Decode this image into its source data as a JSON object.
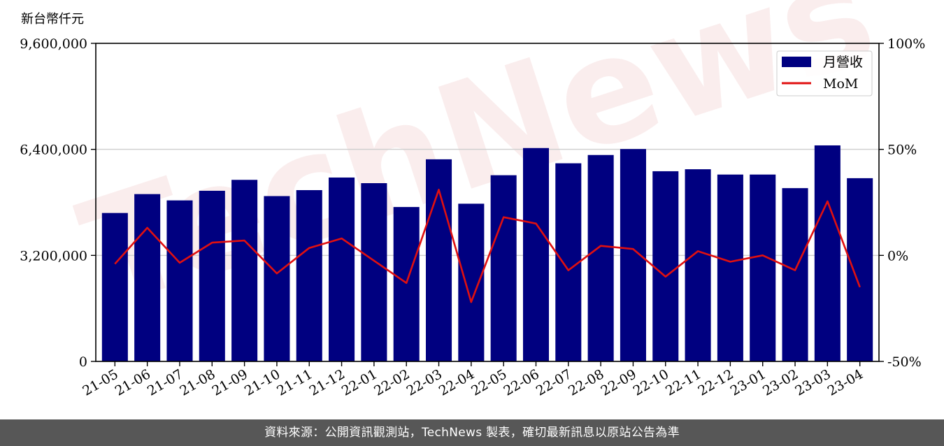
{
  "footer": {
    "source_text": "資料來源：公開資訊觀測站，TechNews 製表，確切最新訊息以原站公告為準"
  },
  "watermark": {
    "text": "TechNews"
  },
  "colors": {
    "bar": "#000080",
    "line": "#e01010",
    "grid": "#d0d0d0",
    "footer_bg": "#575757"
  },
  "chart_data": {
    "type": "bar",
    "unit_label": "新台幣仟元",
    "categories": [
      "21-05",
      "21-06",
      "21-07",
      "21-08",
      "21-09",
      "21-10",
      "21-11",
      "21-12",
      "22-01",
      "22-02",
      "22-03",
      "22-04",
      "22-05",
      "22-06",
      "22-07",
      "22-08",
      "22-09",
      "22-10",
      "22-11",
      "22-12",
      "23-01",
      "23-02",
      "23-03",
      "23-04"
    ],
    "series": [
      {
        "name": "月營收",
        "type": "bar",
        "axis": "left",
        "values": [
          4480000,
          5050000,
          4860000,
          5150000,
          5480000,
          4990000,
          5170000,
          5550000,
          5380000,
          4660000,
          6100000,
          4760000,
          5620000,
          6440000,
          5980000,
          6230000,
          6410000,
          5740000,
          5800000,
          5640000,
          5640000,
          5230000,
          6520000,
          5530000
        ]
      },
      {
        "name": "MoM",
        "type": "line",
        "axis": "right",
        "values": [
          -4,
          13,
          -3.5,
          6,
          7,
          -8.5,
          3.5,
          8,
          -2.5,
          -13,
          31,
          -22,
          18,
          15,
          -7,
          4.5,
          3,
          -10,
          2,
          -3,
          0,
          -7,
          25.5,
          -15
        ]
      }
    ],
    "left_axis": {
      "ylim": [
        0,
        9600000
      ],
      "ticks": [
        0,
        3200000,
        6400000,
        9600000
      ],
      "tick_labels": [
        "0",
        "3,200,000",
        "6,400,000",
        "9,600,000"
      ]
    },
    "right_axis": {
      "ylim": [
        -50,
        100
      ],
      "ticks": [
        -50,
        0,
        50,
        100
      ],
      "tick_labels": [
        "-50%",
        "0%",
        "50%",
        "100%"
      ]
    },
    "grid": "horizontal",
    "legend": "top-right"
  }
}
